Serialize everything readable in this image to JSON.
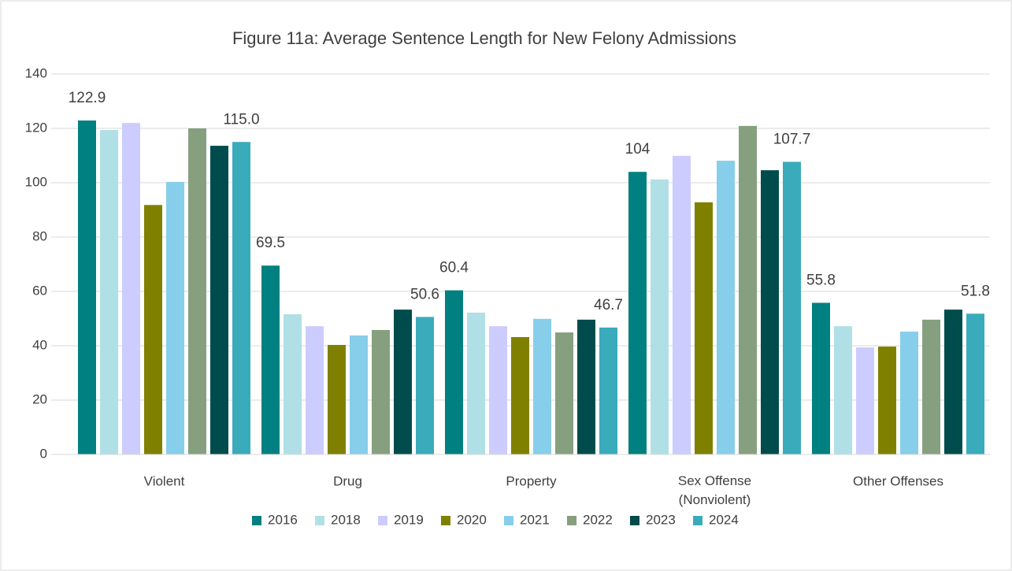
{
  "chart_data": {
    "type": "bar",
    "title": "Figure 11a: Average Sentence Length for New Felony Admissions",
    "categories": [
      "Violent",
      "Drug",
      "Property",
      "Sex Offense\n(Nonviolent)",
      "Other Offenses"
    ],
    "series": [
      {
        "name": "2016",
        "color": "#008080",
        "values": [
          122.9,
          69.5,
          60.4,
          104,
          55.8
        ],
        "value_labels": [
          "122.9",
          "69.5",
          "60.4",
          "104",
          "55.8"
        ]
      },
      {
        "name": "2018",
        "color": "#b0e0e6",
        "values": [
          119.4,
          51.6,
          52.2,
          101.2,
          47.2
        ]
      },
      {
        "name": "2019",
        "color": "#ccccff",
        "values": [
          122,
          47.2,
          47.2,
          109.9,
          39.4
        ]
      },
      {
        "name": "2020",
        "color": "#808000",
        "values": [
          91.8,
          40.3,
          43.2,
          92.8,
          39.7
        ]
      },
      {
        "name": "2021",
        "color": "#87ceeb",
        "values": [
          100.3,
          43.8,
          49.9,
          108.1,
          45.2
        ]
      },
      {
        "name": "2022",
        "color": "#86a07f",
        "values": [
          120,
          45.8,
          44.9,
          120.9,
          49.6
        ]
      },
      {
        "name": "2023",
        "color": "#004c4c",
        "values": [
          113.6,
          53.3,
          49.6,
          104.6,
          53.3
        ]
      },
      {
        "name": "2024",
        "color": "#3aabbb",
        "values": [
          115,
          50.6,
          46.7,
          107.7,
          51.8
        ],
        "value_labels": [
          "115.0",
          "50.6",
          "46.7",
          "107.7",
          "51.8"
        ]
      }
    ],
    "ylim": [
      0,
      140
    ],
    "yticks": [
      0,
      20,
      40,
      60,
      80,
      100,
      120,
      140
    ],
    "grid": true,
    "legend": "bottom"
  }
}
